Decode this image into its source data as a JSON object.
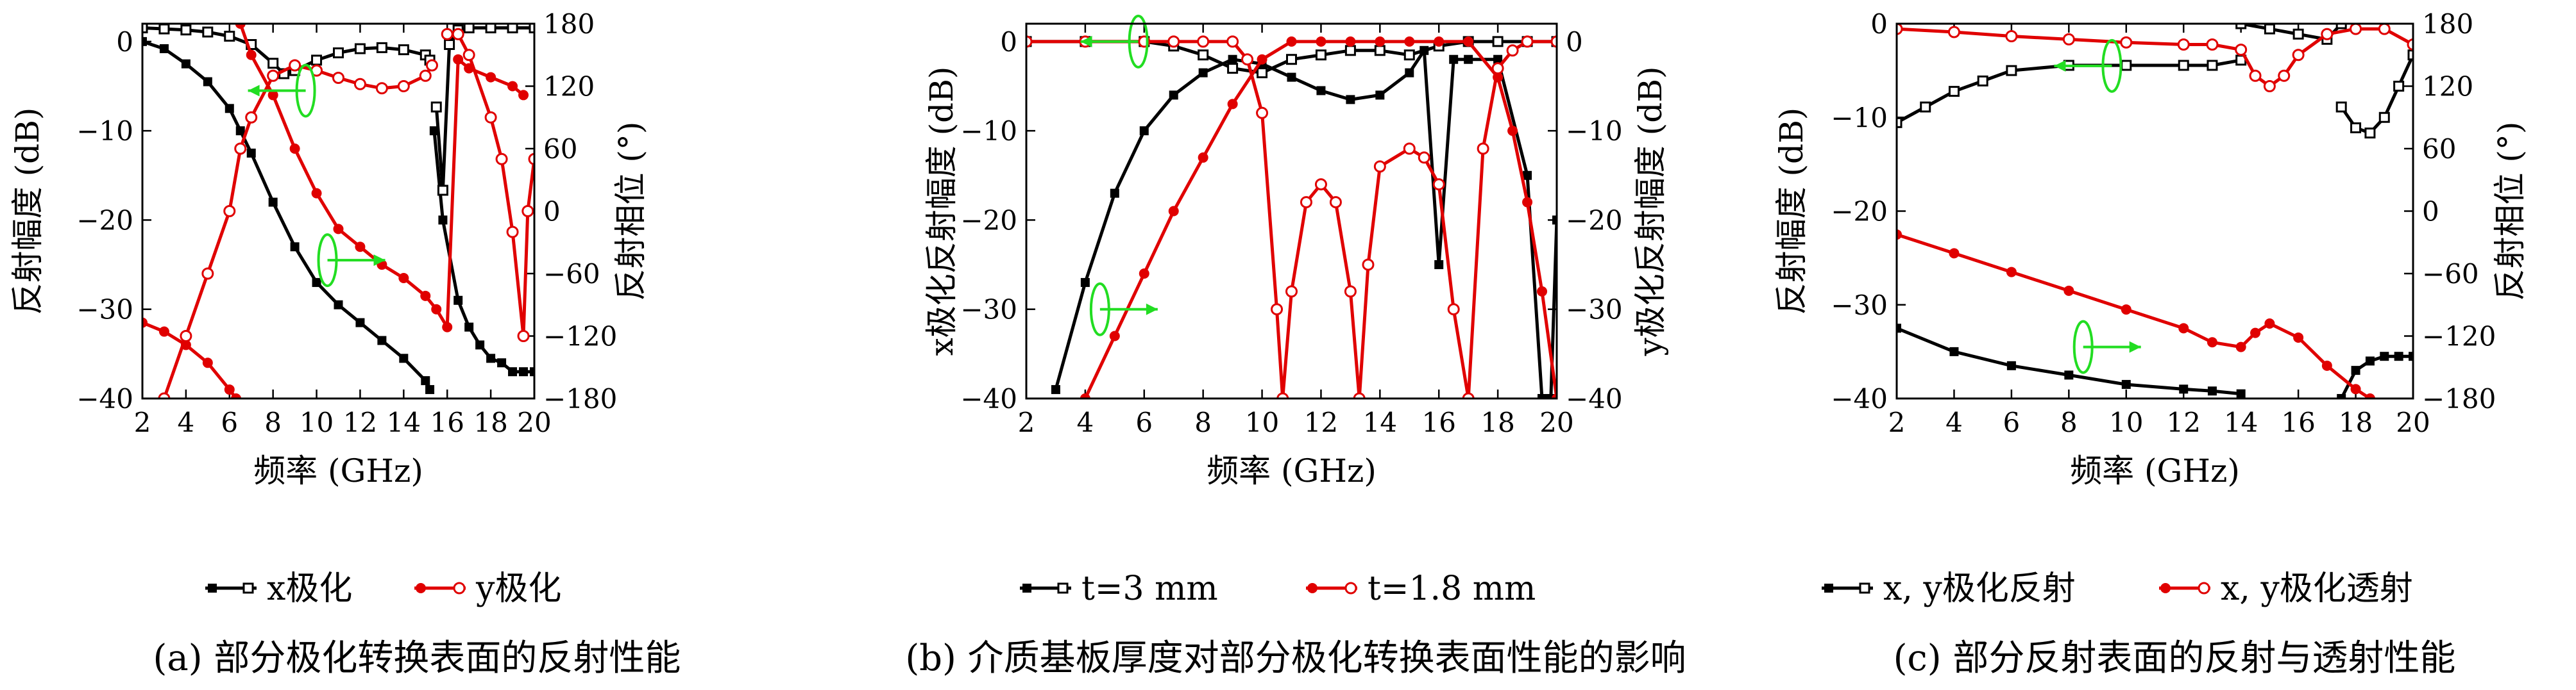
{
  "chart_data": [
    {
      "type": "line",
      "caption": "(a) 部分极化转换表面的反射性能",
      "xlabel": "频率 (GHz)",
      "ylabel": "反射幅度 (dB)",
      "y2label": "反射相位 (°)",
      "xlim": [
        2,
        20
      ],
      "ylim": [
        -40,
        2
      ],
      "y2lim": [
        -180,
        180
      ],
      "xticks": [
        "2",
        "4",
        "6",
        "8",
        "10",
        "12",
        "14",
        "16",
        "18",
        "20"
      ],
      "yticks": [
        "0",
        "-10",
        "-20",
        "-30",
        "-40"
      ],
      "y2ticks": [
        "180",
        "120",
        "60",
        "0",
        "-60",
        "-120",
        "-180"
      ],
      "legend": [
        {
          "label": "x极化",
          "color": "#000000"
        },
        {
          "label": "y极化",
          "color": "#e00000"
        }
      ],
      "series": [
        {
          "name": "x极化",
          "color": "#000000",
          "axis": "left",
          "marker": "filled-square",
          "x": [
            2,
            3,
            4,
            5,
            6,
            6.5,
            7,
            8,
            9,
            10,
            11,
            12,
            13,
            14,
            15,
            15.2
          ],
          "y": [
            0,
            -0.8,
            -2.5,
            -4.5,
            -7.5,
            -10,
            -12.5,
            -18,
            -23,
            -27,
            -29.5,
            -31.5,
            -33.5,
            -35.5,
            -38,
            -39
          ]
        },
        {
          "name": "x极化",
          "color": "#000000",
          "axis": "left",
          "marker": "filled-square",
          "x": [
            15.4,
            15.8,
            16.5,
            17,
            17.5,
            18,
            18.5,
            19,
            19.5,
            20
          ],
          "y": [
            -10,
            -20,
            -29,
            -32,
            -34,
            -35.5,
            -36,
            -37,
            -37,
            -37
          ]
        },
        {
          "name": "x极化",
          "color": "#000000",
          "axis": "right",
          "marker": "open-square",
          "x": [
            2,
            3,
            4,
            5,
            6,
            7,
            8,
            8.5,
            9,
            10,
            11,
            12,
            13,
            14,
            15,
            15.2
          ],
          "y": [
            176,
            175,
            174,
            172,
            168,
            160,
            142,
            132,
            135,
            145,
            152,
            156,
            157,
            155,
            150,
            145
          ]
        },
        {
          "name": "x极化",
          "color": "#000000",
          "axis": "right",
          "marker": "open-square",
          "x": [
            15.5,
            15.8,
            16.1,
            16.5,
            17,
            18,
            19,
            20
          ],
          "y": [
            100,
            20,
            160,
            174,
            176,
            176,
            176,
            176
          ]
        },
        {
          "name": "y极化",
          "color": "#e00000",
          "axis": "left",
          "marker": "filled-circle",
          "x": [
            2,
            3,
            4,
            5,
            6,
            6.3
          ],
          "y": [
            -31.5,
            -32.5,
            -34,
            -36,
            -39,
            -40
          ]
        },
        {
          "name": "y极化",
          "color": "#e00000",
          "axis": "left",
          "marker": "filled-circle",
          "x": [
            6.5,
            7,
            8,
            9,
            10,
            11,
            12,
            13,
            14,
            15,
            15.5,
            16,
            16.5,
            17,
            18,
            19,
            19.5
          ],
          "y": [
            2,
            -1.5,
            -6,
            -12,
            -17,
            -21,
            -23,
            -25,
            -26.5,
            -28.5,
            -30,
            -32,
            -2,
            -3,
            -4,
            -5,
            -6
          ]
        },
        {
          "name": "y极化",
          "color": "#e00000",
          "axis": "right",
          "marker": "open-circle",
          "x": [
            3,
            4,
            5,
            6,
            6.5,
            7,
            8,
            9,
            10,
            11,
            12,
            13,
            14,
            15,
            15.3
          ],
          "y": [
            -180,
            -120,
            -60,
            0,
            60,
            90,
            130,
            140,
            135,
            128,
            122,
            118,
            120,
            130,
            140
          ]
        },
        {
          "name": "y极化",
          "color": "#e00000",
          "axis": "right",
          "marker": "open-circle",
          "x": [
            16,
            16.5,
            17,
            18,
            18.5,
            19,
            19.5,
            19.7,
            20
          ],
          "y": [
            170,
            170,
            150,
            90,
            50,
            -20,
            -120,
            0,
            50
          ]
        }
      ],
      "annotations": [
        {
          "type": "arrow-left",
          "at": [
            9.5,
            -5.5
          ]
        },
        {
          "type": "arrow-right",
          "at": [
            10.5,
            -24.5
          ]
        }
      ]
    },
    {
      "type": "line",
      "caption": "(b) 介质基板厚度对部分极化转换表面性能的影响",
      "xlabel": "频率 (GHz)",
      "ylabel": "x极化反射幅度 (dB)",
      "y2label": "y极化反射幅度 (dB)",
      "xlim": [
        2,
        20
      ],
      "ylim": [
        -40,
        2
      ],
      "y2lim": [
        -40,
        2
      ],
      "xticks": [
        "2",
        "4",
        "6",
        "8",
        "10",
        "12",
        "14",
        "16",
        "18",
        "20"
      ],
      "yticks": [
        "0",
        "-10",
        "-20",
        "-30",
        "-40"
      ],
      "y2ticks": [
        "0",
        "-10",
        "-20",
        "-30",
        "-40"
      ],
      "legend": [
        {
          "label": "t=3 mm",
          "color": "#000000"
        },
        {
          "label": "t=1.8 mm",
          "color": "#e00000"
        }
      ],
      "series": [
        {
          "name": "t=3 mm",
          "color": "#000000",
          "axis": "left",
          "marker": "filled-square",
          "x": [
            3,
            4,
            5,
            6,
            7,
            8,
            9,
            10,
            11,
            12,
            13,
            14,
            15,
            15.5,
            16,
            16.5,
            17,
            18,
            19,
            19.5,
            19.8,
            20
          ],
          "y": [
            -39,
            -27,
            -17,
            -10,
            -6,
            -3.5,
            -2,
            -2.5,
            -4,
            -5.5,
            -6.5,
            -6,
            -3.5,
            -1,
            -25,
            -2,
            -2,
            -2,
            -15,
            -40,
            -40,
            -20
          ]
        },
        {
          "name": "t=3 mm",
          "color": "#000000",
          "axis": "right",
          "marker": "open-square",
          "x": [
            2,
            4,
            6,
            7,
            8,
            9,
            10,
            11,
            12,
            13,
            14,
            15,
            16,
            17,
            18,
            19,
            20
          ],
          "y": [
            0,
            0,
            0,
            -0.5,
            -1.5,
            -3,
            -3.5,
            -2,
            -1.5,
            -1,
            -1,
            -1.5,
            -0.5,
            0,
            0,
            0,
            0
          ]
        },
        {
          "name": "t=1.8 mm",
          "color": "#e00000",
          "axis": "left",
          "marker": "filled-circle",
          "x": [
            4,
            5,
            6,
            7,
            8,
            9,
            10,
            11,
            12,
            13,
            14,
            15,
            16,
            17,
            18,
            18.5,
            19,
            19.5,
            20
          ],
          "y": [
            -40,
            -33,
            -26,
            -19,
            -13,
            -7,
            -2,
            0,
            0,
            0,
            0,
            0,
            0,
            0,
            -4,
            -10,
            -18,
            -28,
            -40
          ]
        },
        {
          "name": "t=1.8 mm",
          "color": "#e00000",
          "axis": "right",
          "marker": "open-circle",
          "x": [
            2,
            4,
            6,
            7,
            8,
            9,
            9.5,
            10,
            10.5,
            10.7,
            11,
            11.5,
            12,
            12.5,
            13,
            13.3,
            13.6,
            14,
            15,
            15.5,
            16,
            16.5,
            17,
            17.5,
            18,
            18.5,
            19,
            20
          ],
          "y": [
            0,
            0,
            0,
            0,
            0,
            0,
            -2,
            -8,
            -30,
            -40,
            -28,
            -18,
            -16,
            -18,
            -28,
            -40,
            -25,
            -14,
            -12,
            -13,
            -16,
            -30,
            -40,
            -12,
            -3,
            -1,
            0,
            0
          ]
        }
      ],
      "annotations": [
        {
          "type": "arrow-left",
          "at": [
            5.8,
            0
          ]
        },
        {
          "type": "arrow-right",
          "at": [
            4.5,
            -30
          ]
        }
      ]
    },
    {
      "type": "line",
      "caption": "(c) 部分反射表面的反射与透射性能",
      "xlabel": "频率 (GHz)",
      "ylabel": "反射幅度 (dB)",
      "y2label": "反射相位 (°)",
      "xlim": [
        2,
        20
      ],
      "ylim": [
        -40,
        0
      ],
      "y2lim": [
        -180,
        180
      ],
      "xticks": [
        "2",
        "4",
        "6",
        "8",
        "10",
        "12",
        "14",
        "16",
        "18",
        "20"
      ],
      "yticks": [
        "0",
        "-10",
        "-20",
        "-30",
        "-40"
      ],
      "y2ticks": [
        "180",
        "120",
        "60",
        "0",
        "-60",
        "-120",
        "-180"
      ],
      "legend": [
        {
          "label": "x, y极化反射",
          "color": "#000000"
        },
        {
          "label": "x, y极化透射",
          "color": "#e00000"
        }
      ],
      "series": [
        {
          "name": "x, y极化反射",
          "color": "#000000",
          "axis": "left",
          "marker": "filled-square",
          "x": [
            2,
            4,
            6,
            8,
            10,
            12,
            13,
            14
          ],
          "y": [
            -32.5,
            -35,
            -36.5,
            -37.5,
            -38.5,
            -39,
            -39.2,
            -39.5
          ]
        },
        {
          "name": "x, y极化反射",
          "color": "#000000",
          "axis": "left",
          "marker": "filled-square",
          "x": [
            17.5,
            18,
            18.5,
            19,
            19.5,
            20
          ],
          "y": [
            -40,
            -37,
            -36,
            -35.5,
            -35.5,
            -35.5
          ]
        },
        {
          "name": "x, y极化反射",
          "color": "#000000",
          "axis": "right",
          "marker": "open-square",
          "x": [
            2,
            3,
            4,
            5,
            6,
            8,
            10,
            12,
            13,
            14
          ],
          "y": [
            85,
            100,
            115,
            125,
            135,
            140,
            140,
            140,
            140,
            145
          ]
        },
        {
          "name": "x, y极化反射",
          "color": "#000000",
          "axis": "right",
          "marker": "open-square",
          "x": [
            14,
            15,
            16,
            17,
            17.5
          ],
          "y": [
            180,
            175,
            170,
            165,
            180
          ]
        },
        {
          "name": "x, y极化反射",
          "color": "#000000",
          "axis": "right",
          "marker": "open-square",
          "x": [
            17.5,
            18,
            18.5,
            19,
            19.5,
            20
          ],
          "y": [
            100,
            80,
            75,
            90,
            120,
            150
          ]
        },
        {
          "name": "x, y极化透射",
          "color": "#e00000",
          "axis": "left",
          "marker": "filled-circle",
          "x": [
            2,
            4,
            6,
            8,
            10,
            12,
            13,
            14,
            14.5,
            15,
            16,
            17,
            18,
            18.5
          ],
          "y": [
            -22.5,
            -24.5,
            -26.5,
            -28.5,
            -30.5,
            -32.5,
            -34,
            -34.5,
            -33,
            -32,
            -33.5,
            -36.5,
            -39,
            -40
          ]
        },
        {
          "name": "x, y极化透射",
          "color": "#e00000",
          "axis": "right",
          "marker": "open-circle",
          "x": [
            2,
            4,
            6,
            8,
            10,
            12,
            13,
            14,
            14.5,
            15,
            15.5,
            16,
            17,
            18,
            19,
            20
          ],
          "y": [
            175,
            172,
            168,
            165,
            162,
            160,
            160,
            155,
            130,
            120,
            130,
            150,
            170,
            175,
            175,
            160
          ]
        }
      ],
      "annotations": [
        {
          "type": "arrow-left",
          "at": [
            9.5,
            -4.5
          ]
        },
        {
          "type": "arrow-right",
          "at": [
            8.5,
            -34.5
          ]
        }
      ]
    }
  ]
}
